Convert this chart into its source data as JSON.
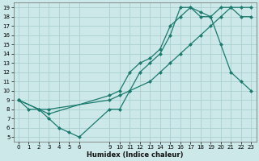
{
  "bg_color": "#cce8e8",
  "grid_color": "#aacfcf",
  "line_color": "#1a7a6e",
  "xlabel": "Humidex (Indice chaleur)",
  "xlim": [
    -0.5,
    23.5
  ],
  "ylim": [
    4.5,
    19.5
  ],
  "xticks": [
    0,
    1,
    2,
    3,
    4,
    5,
    6,
    9,
    10,
    11,
    12,
    13,
    14,
    15,
    16,
    17,
    18,
    19,
    20,
    21,
    22,
    23
  ],
  "yticks": [
    5,
    6,
    7,
    8,
    9,
    10,
    11,
    12,
    13,
    14,
    15,
    16,
    17,
    18,
    19
  ],
  "curve1_x": [
    0,
    1,
    2,
    3,
    4,
    5,
    6,
    9,
    10,
    11,
    12,
    13,
    14,
    15,
    16,
    17,
    18,
    19,
    20,
    21,
    22,
    23
  ],
  "curve1_y": [
    9,
    8,
    8,
    7,
    6,
    5.5,
    5,
    8,
    8,
    10,
    12,
    13,
    14,
    16,
    19,
    19,
    18,
    18,
    15,
    12,
    11,
    10
  ],
  "curve2_x": [
    0,
    2,
    3,
    9,
    10,
    11,
    12,
    13,
    14,
    15,
    16,
    17,
    18,
    19,
    20,
    21,
    22,
    23
  ],
  "curve2_y": [
    9,
    8,
    7.5,
    9.5,
    10,
    12,
    13,
    13.5,
    14.5,
    17,
    18,
    19,
    18.5,
    18,
    19,
    19,
    18,
    18
  ],
  "curve3_x": [
    0,
    2,
    3,
    9,
    10,
    11,
    13,
    14,
    15,
    16,
    17,
    18,
    19,
    20,
    21,
    22,
    23
  ],
  "curve3_y": [
    9,
    8,
    8,
    9,
    9.5,
    10,
    11,
    12,
    13,
    14,
    15,
    16,
    17,
    18,
    19,
    19,
    19
  ]
}
